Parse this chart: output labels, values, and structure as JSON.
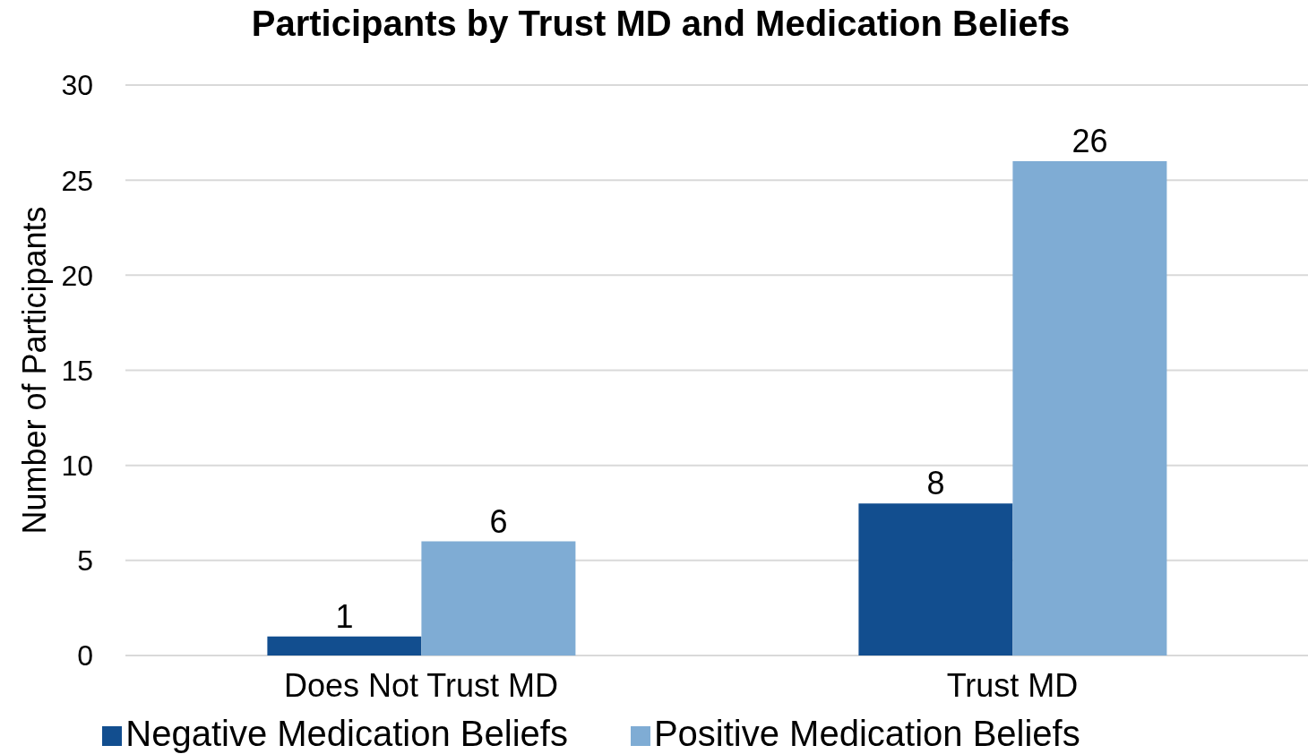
{
  "chart_data": {
    "type": "bar",
    "title": "Participants by Trust MD and Medication Beliefs",
    "ylabel": "Number of Participants",
    "categories": [
      "Does Not Trust MD",
      "Trust MD"
    ],
    "series": [
      {
        "name": "Negative Medication Beliefs",
        "color": "#124e8f",
        "values": [
          1,
          8
        ]
      },
      {
        "name": "Positive Medication Beliefs",
        "color": "#7facd4",
        "values": [
          6,
          26
        ]
      }
    ],
    "ylim": [
      0,
      30
    ],
    "yticks": [
      0,
      5,
      10,
      15,
      20,
      25,
      30
    ],
    "grid": "y",
    "legend": "bottom",
    "data_labels": true
  }
}
